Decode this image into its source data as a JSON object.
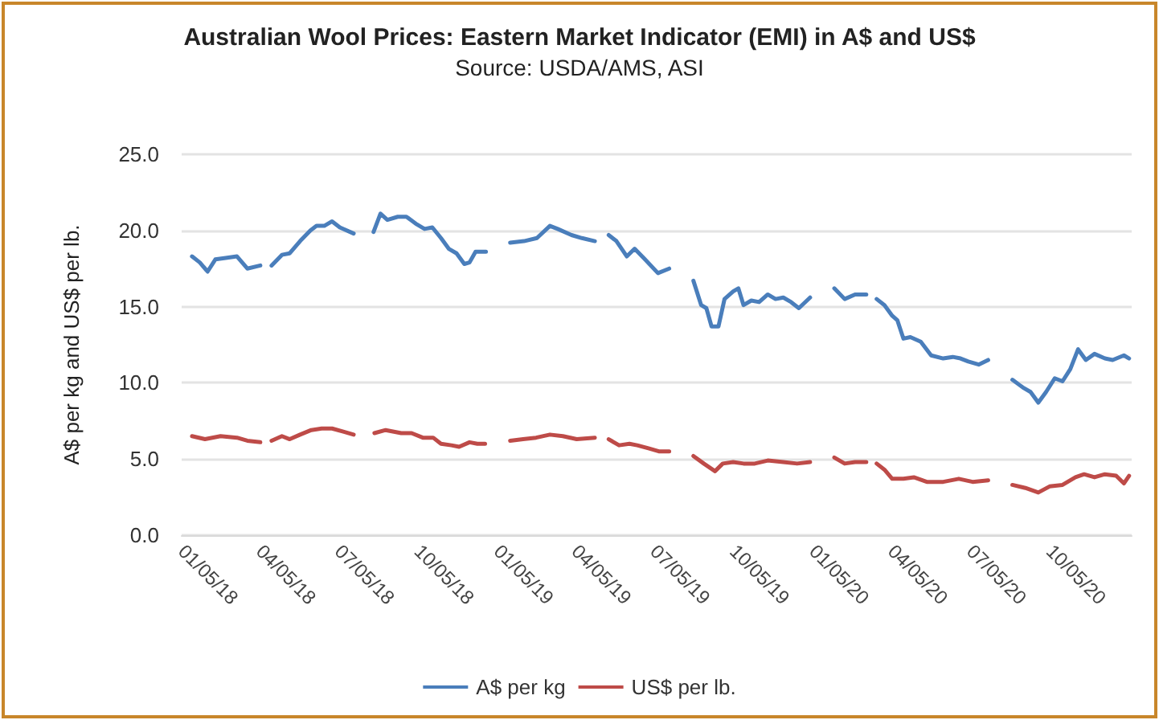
{
  "chart_data": {
    "type": "line",
    "title": "Australian Wool Prices: Eastern Market Indicator (EMI) in A$ and US$",
    "subtitle": "Source: USDA/AMS, ASI",
    "ylabel": "A$ per kg and US$ per lb.",
    "xlim": [
      "2018-01-05",
      "2021-01-08"
    ],
    "xticks": [
      {
        "value": "2018-01-05",
        "label": "01/05/18"
      },
      {
        "value": "2018-04-05",
        "label": "04/05/18"
      },
      {
        "value": "2018-07-05",
        "label": "07/05/18"
      },
      {
        "value": "2018-10-05",
        "label": "10/05/18"
      },
      {
        "value": "2019-01-05",
        "label": "01/05/19"
      },
      {
        "value": "2019-04-05",
        "label": "04/05/19"
      },
      {
        "value": "2019-07-05",
        "label": "07/05/19"
      },
      {
        "value": "2019-10-05",
        "label": "10/05/19"
      },
      {
        "value": "2020-01-05",
        "label": "01/05/20"
      },
      {
        "value": "2020-04-05",
        "label": "04/05/20"
      },
      {
        "value": "2020-07-05",
        "label": "07/05/20"
      },
      {
        "value": "2020-10-05",
        "label": "10/05/20"
      }
    ],
    "ylim": [
      0,
      25
    ],
    "yticks": [
      {
        "value": 0,
        "label": "0.0"
      },
      {
        "value": 5,
        "label": "5.0"
      },
      {
        "value": 10,
        "label": "10.0"
      },
      {
        "value": 15,
        "label": "15.0"
      },
      {
        "value": 20,
        "label": "20.0"
      },
      {
        "value": 25,
        "label": "25.0"
      }
    ],
    "grid": "y",
    "legend": "bottom",
    "marker": "none",
    "line_style": "solid",
    "series": [
      {
        "name": "A$ per kg",
        "color": "#4a7ebb",
        "x": [
          "2018-01-17",
          "2018-01-26",
          "2018-02-04",
          "2018-02-13",
          "2018-02-25",
          "2018-03-10",
          "2018-03-22",
          "2018-04-06",
          "2018-04-12",
          "2018-04-19",
          "2018-05-01",
          "2018-05-10",
          "2018-05-22",
          "2018-06-03",
          "2018-06-10",
          "2018-06-19",
          "2018-06-28",
          "2018-07-07",
          "2018-07-23",
          "2018-08-05",
          "2018-08-15",
          "2018-08-23",
          "2018-08-31",
          "2018-09-12",
          "2018-09-22",
          "2018-10-04",
          "2018-10-13",
          "2018-10-22",
          "2018-11-01",
          "2018-11-10",
          "2018-11-19",
          "2018-11-28",
          "2018-12-04",
          "2018-12-11",
          "2018-12-23",
          "2019-01-08",
          "2019-01-20",
          "2019-02-05",
          "2019-02-20",
          "2019-03-07",
          "2019-03-16",
          "2019-04-01",
          "2019-04-13",
          "2019-04-28",
          "2019-05-06",
          "2019-05-14",
          "2019-05-23",
          "2019-06-04",
          "2019-06-13",
          "2019-06-25",
          "2019-07-10",
          "2019-07-23",
          "2019-08-06",
          "2019-08-20",
          "2019-08-29",
          "2019-09-04",
          "2019-09-10",
          "2019-09-18",
          "2019-09-25",
          "2019-10-05",
          "2019-10-11",
          "2019-10-17",
          "2019-10-26",
          "2019-11-04",
          "2019-11-14",
          "2019-11-23",
          "2019-12-02",
          "2019-12-11",
          "2019-12-20",
          "2020-01-02",
          "2020-01-16",
          "2020-01-30",
          "2020-02-11",
          "2020-02-23",
          "2020-03-07",
          "2020-03-13",
          "2020-03-19",
          "2020-03-28",
          "2020-04-06",
          "2020-04-12",
          "2020-04-19",
          "2020-04-27",
          "2020-05-09",
          "2020-05-21",
          "2020-06-04",
          "2020-06-15",
          "2020-06-24",
          "2020-07-03",
          "2020-07-15",
          "2020-07-26",
          "2020-08-09",
          "2020-08-23",
          "2020-09-04",
          "2020-09-13",
          "2020-09-22",
          "2020-10-01",
          "2020-10-11",
          "2020-10-20",
          "2020-10-29",
          "2020-11-07",
          "2020-11-16",
          "2020-11-26",
          "2020-12-08",
          "2020-12-17",
          "2020-12-30",
          "2021-01-05"
        ],
        "values": [
          18.3,
          17.9,
          17.3,
          18.1,
          18.2,
          18.3,
          17.5,
          17.7,
          null,
          17.7,
          18.4,
          18.5,
          19.3,
          20.0,
          20.3,
          20.3,
          20.6,
          20.2,
          19.8,
          null,
          19.9,
          21.1,
          20.7,
          20.9,
          20.9,
          20.4,
          20.1,
          20.2,
          19.5,
          18.8,
          18.5,
          17.8,
          17.9,
          18.6,
          18.6,
          null,
          19.2,
          19.3,
          19.5,
          20.3,
          20.1,
          19.7,
          19.5,
          19.3,
          null,
          19.7,
          19.3,
          18.3,
          18.8,
          18.1,
          17.2,
          17.5,
          null,
          16.7,
          15.1,
          14.9,
          13.7,
          13.7,
          15.5,
          16.0,
          16.2,
          15.1,
          15.4,
          15.3,
          15.8,
          15.5,
          15.6,
          15.3,
          14.9,
          15.6,
          null,
          16.2,
          15.5,
          15.8,
          15.8,
          null,
          15.5,
          15.1,
          14.4,
          14.1,
          12.9,
          13.0,
          12.7,
          11.8,
          11.6,
          11.7,
          11.6,
          11.4,
          11.2,
          11.5,
          null,
          10.2,
          9.7,
          9.4,
          8.7,
          9.4,
          10.3,
          10.1,
          10.9,
          12.2,
          11.5,
          11.9,
          11.6,
          11.5,
          11.8,
          11.6
        ]
      },
      {
        "name": "US$ per lb.",
        "color": "#be4b48",
        "x": [
          "2018-01-17",
          "2018-02-01",
          "2018-02-19",
          "2018-03-10",
          "2018-03-22",
          "2018-04-06",
          "2018-04-12",
          "2018-04-19",
          "2018-05-01",
          "2018-05-10",
          "2018-05-22",
          "2018-06-04",
          "2018-06-16",
          "2018-06-28",
          "2018-07-11",
          "2018-07-23",
          "2018-08-05",
          "2018-08-16",
          "2018-08-29",
          "2018-09-16",
          "2018-09-28",
          "2018-10-11",
          "2018-10-23",
          "2018-11-01",
          "2018-11-13",
          "2018-11-22",
          "2018-12-04",
          "2018-12-13",
          "2018-12-22",
          "2019-01-08",
          "2019-01-20",
          "2019-02-04",
          "2019-02-19",
          "2019-03-07",
          "2019-03-22",
          "2019-04-07",
          "2019-04-28",
          "2019-05-06",
          "2019-05-14",
          "2019-05-26",
          "2019-06-07",
          "2019-06-16",
          "2019-06-29",
          "2019-07-11",
          "2019-07-23",
          "2019-08-06",
          "2019-08-20",
          "2019-09-01",
          "2019-09-14",
          "2019-09-23",
          "2019-10-05",
          "2019-10-17",
          "2019-10-30",
          "2019-11-14",
          "2019-12-02",
          "2019-12-18",
          "2020-01-02",
          "2020-01-16",
          "2020-01-30",
          "2020-02-11",
          "2020-02-23",
          "2020-03-07",
          "2020-03-13",
          "2020-03-19",
          "2020-03-28",
          "2020-04-06",
          "2020-04-19",
          "2020-05-01",
          "2020-05-16",
          "2020-06-04",
          "2020-06-22",
          "2020-07-08",
          "2020-07-26",
          "2020-08-09",
          "2020-08-23",
          "2020-09-07",
          "2020-09-22",
          "2020-10-05",
          "2020-10-20",
          "2020-11-04",
          "2020-11-14",
          "2020-11-26",
          "2020-12-08",
          "2020-12-21",
          "2020-12-30",
          "2021-01-05"
        ],
        "values": [
          6.5,
          6.3,
          6.5,
          6.4,
          6.2,
          6.1,
          null,
          6.2,
          6.5,
          6.3,
          6.6,
          6.9,
          7.0,
          7.0,
          6.8,
          6.6,
          null,
          6.7,
          6.9,
          6.7,
          6.7,
          6.4,
          6.4,
          6.0,
          5.9,
          5.8,
          6.1,
          6.0,
          6.0,
          null,
          6.2,
          6.3,
          6.4,
          6.6,
          6.5,
          6.3,
          6.4,
          null,
          6.3,
          5.9,
          6.0,
          5.9,
          5.7,
          5.5,
          5.5,
          null,
          5.2,
          4.7,
          4.2,
          4.7,
          4.8,
          4.7,
          4.7,
          4.9,
          4.8,
          4.7,
          4.8,
          null,
          5.1,
          4.7,
          4.8,
          4.8,
          null,
          4.7,
          4.3,
          3.7,
          3.7,
          3.8,
          3.5,
          3.5,
          3.7,
          3.5,
          3.6,
          null,
          3.3,
          3.1,
          2.8,
          3.2,
          3.3,
          3.8,
          4.0,
          3.8,
          4.0,
          3.9,
          3.4,
          3.9
        ]
      }
    ]
  }
}
